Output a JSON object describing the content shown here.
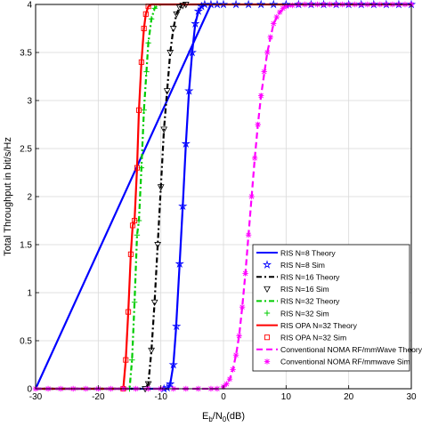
{
  "chart_data": {
    "type": "line",
    "xlabel": "E",
    "xlabel_sub": "b",
    "xlabel_mid": "/N",
    "xlabel_sub2": "0",
    "xlabel_unit": "(dB)",
    "ylabel": "Total Throughput in bit/s/Hz",
    "xlim": [
      -30,
      30
    ],
    "ylim": [
      0,
      4
    ],
    "xticks": [
      -30,
      -20,
      -10,
      0,
      10,
      20,
      30
    ],
    "yticks": [
      0,
      0.5,
      1,
      1.5,
      2,
      2.5,
      3,
      3.5,
      4
    ],
    "grid": true,
    "legend_position": "bottom-right",
    "series": [
      {
        "name": "RIS N=8 Theory",
        "color": "#0000ff",
        "dash": "solid",
        "marker": "none",
        "width": 2.2,
        "x": [
          -30,
          -9,
          -8.5,
          -8,
          -7.6,
          -7,
          -6.5,
          -6,
          -5.5,
          -5,
          -4.5,
          -4,
          -3.5,
          -3,
          -2.5,
          -2,
          -30
        ],
        "y": [
          0,
          0,
          0.05,
          0.25,
          0.6,
          1.3,
          1.9,
          2.55,
          3.1,
          3.5,
          3.8,
          3.93,
          3.98,
          4.0,
          4.0,
          4.0,
          0
        ]
      },
      {
        "name": "RIS N=8 Sim",
        "color": "#0000ff",
        "dash": "none",
        "marker": "star",
        "x": [
          -9.5,
          -9,
          -8.5,
          -8,
          -7.5,
          -7,
          -6.5,
          -6,
          -5.5,
          -5,
          -4.5,
          -4,
          -3.5,
          -3,
          -2,
          -1,
          0,
          2,
          4,
          6,
          8,
          10,
          12,
          14,
          16,
          18,
          20,
          22,
          24,
          26,
          28,
          30
        ],
        "y": [
          0,
          0.01,
          0.05,
          0.25,
          0.65,
          1.3,
          1.9,
          2.55,
          3.1,
          3.5,
          3.8,
          3.93,
          3.98,
          4.0,
          4.0,
          4.0,
          4.0,
          4.0,
          4.0,
          4.0,
          4.0,
          4.0,
          4.0,
          4.0,
          4.0,
          4.0,
          4.0,
          4.0,
          4.0,
          4.0,
          4.0,
          4.0
        ]
      },
      {
        "name": "RIS N=16 Theory",
        "color": "#000000",
        "dash": "6,3,2,3",
        "marker": "none",
        "width": 2.2,
        "x": [
          -30,
          -12.5,
          -12,
          -11.5,
          -11,
          -10.5,
          -10,
          -9.5,
          -9,
          -8.5,
          -8,
          -7.5,
          -7,
          -6
        ],
        "y": [
          0,
          0,
          0.05,
          0.4,
          0.9,
          1.5,
          2.1,
          2.7,
          3.1,
          3.5,
          3.75,
          3.9,
          3.97,
          4.0
        ]
      },
      {
        "name": "RIS N=16 Sim",
        "color": "#000000",
        "dash": "none",
        "marker": "triangle-down",
        "x": [
          -12.5,
          -12,
          -11.5,
          -11,
          -10.5,
          -10,
          -9.5,
          -9,
          -8.5,
          -8,
          -7.5,
          -7,
          -6.5,
          -6
        ],
        "y": [
          0,
          0.05,
          0.4,
          0.9,
          1.5,
          2.1,
          2.7,
          3.1,
          3.5,
          3.75,
          3.9,
          3.97,
          3.99,
          4.0
        ]
      },
      {
        "name": "RIS N=32 Theory",
        "color": "#00cc00",
        "dash": "6,3,2,3",
        "marker": "none",
        "width": 2.2,
        "x": [
          -30,
          -15,
          -14.6,
          -14.2,
          -13.8,
          -13.5,
          -13.1,
          -12.7,
          -12.3,
          -12,
          -11.5,
          -11,
          -10.5,
          -10
        ],
        "y": [
          0,
          0,
          0.3,
          0.9,
          1.6,
          1.75,
          2.3,
          2.9,
          3.3,
          3.6,
          3.85,
          3.96,
          3.99,
          4.0
        ]
      },
      {
        "name": "RIS N=32 Sim",
        "color": "#00cc00",
        "dash": "none",
        "marker": "plus",
        "x": [
          -15,
          -14.6,
          -14.2,
          -13.8,
          -13.5,
          -13.1,
          -12.7,
          -12.3,
          -12,
          -11.5,
          -11
        ],
        "y": [
          0,
          0.3,
          0.9,
          1.6,
          1.75,
          2.3,
          2.9,
          3.3,
          3.6,
          3.85,
          3.96
        ]
      },
      {
        "name": "RIS OPA N=32 Theory",
        "color": "#ff0000",
        "dash": "solid",
        "marker": "none",
        "width": 2.2,
        "x": [
          -30,
          -16,
          -15.6,
          -15.2,
          -14.8,
          -14.5,
          -14.2,
          -13.8,
          -13.5,
          -13.1,
          -12.7,
          -12.4,
          -12,
          -11.5,
          -11,
          30
        ],
        "y": [
          0,
          0,
          0.3,
          0.8,
          1.4,
          1.7,
          1.75,
          2.3,
          2.9,
          3.4,
          3.75,
          3.9,
          3.98,
          4.0,
          4.0,
          4.0
        ]
      },
      {
        "name": "RIS OPA N=32 Sim",
        "color": "#ff0000",
        "dash": "none",
        "marker": "square",
        "x": [
          -16,
          -15.6,
          -15.2,
          -14.8,
          -14.5,
          -14.2,
          -13.8,
          -13.5,
          -13.1,
          -12.7,
          -12.4,
          -12
        ],
        "y": [
          0,
          0.3,
          0.8,
          1.4,
          1.7,
          1.75,
          2.3,
          2.9,
          3.4,
          3.75,
          3.9,
          3.98
        ]
      },
      {
        "name": "Conventional NOMA RF/mmWave Theory",
        "color": "#ff00ff",
        "dash": "7,4",
        "marker": "none",
        "width": 2.2,
        "x": [
          -30,
          -1,
          0,
          0.5,
          1,
          1.5,
          2,
          2.5,
          3,
          3.5,
          4,
          4.5,
          5,
          5.5,
          6,
          7,
          8,
          9,
          10,
          12,
          15,
          20,
          25,
          30
        ],
        "y": [
          0,
          0,
          0.02,
          0.05,
          0.1,
          0.2,
          0.35,
          0.55,
          0.85,
          1.2,
          1.6,
          2.0,
          2.4,
          2.75,
          3.05,
          3.5,
          3.8,
          3.92,
          3.98,
          4.0,
          4.0,
          4.0,
          4.0,
          4.0
        ]
      },
      {
        "name": "Conventional NOMA RF/mmwave Sim",
        "color": "#ff00ff",
        "dash": "none",
        "marker": "asterisk",
        "x": [
          -30,
          -28,
          -26,
          -24,
          -22,
          -20,
          -18,
          -16,
          -14,
          -12,
          -10,
          -8,
          -6,
          -4,
          -2,
          -1,
          0,
          0.5,
          1,
          1.5,
          2,
          2.5,
          3,
          3.5,
          4,
          4.5,
          5,
          5.5,
          6,
          6.5,
          7,
          7.5,
          8,
          8.5,
          9,
          9.5,
          10,
          11,
          12,
          13,
          14,
          15,
          16,
          17,
          18,
          19,
          20,
          21,
          22,
          23,
          24,
          25,
          26,
          27,
          28,
          29,
          30
        ],
        "y": [
          0,
          0,
          0,
          0,
          0,
          0,
          0,
          0,
          0,
          0,
          0,
          0,
          0,
          0,
          0,
          0,
          0.02,
          0.05,
          0.1,
          0.2,
          0.35,
          0.55,
          0.85,
          1.2,
          1.6,
          2.0,
          2.4,
          2.75,
          3.05,
          3.3,
          3.5,
          3.66,
          3.8,
          3.87,
          3.92,
          3.96,
          3.98,
          3.99,
          4.0,
          4.0,
          4.0,
          4.0,
          4.0,
          4.0,
          4.0,
          4.0,
          4.0,
          4.0,
          4.0,
          4.0,
          4.0,
          4.0,
          4.0,
          4.0,
          4.0,
          4.0,
          4.0
        ]
      }
    ],
    "legend": [
      {
        "label": "RIS N=8 Theory",
        "color": "#0000ff",
        "dash": "solid",
        "marker": "none"
      },
      {
        "label": "RIS N=8 Sim",
        "color": "#0000ff",
        "dash": "none",
        "marker": "star"
      },
      {
        "label": "RIS N=16 Theory",
        "color": "#000000",
        "dash": "6,3,2,3",
        "marker": "none"
      },
      {
        "label": "RIS N=16 Sim",
        "color": "#000000",
        "dash": "none",
        "marker": "triangle-down"
      },
      {
        "label": "RIS N=32 Theory",
        "color": "#00cc00",
        "dash": "6,3,2,3",
        "marker": "none"
      },
      {
        "label": "RIS N=32 Sim",
        "color": "#00cc00",
        "dash": "none",
        "marker": "plus"
      },
      {
        "label": "RIS OPA N=32 Theory",
        "color": "#ff0000",
        "dash": "solid",
        "marker": "none"
      },
      {
        "label": "RIS OPA N=32 Sim",
        "color": "#ff0000",
        "dash": "none",
        "marker": "square"
      },
      {
        "label": "Conventional NOMA RF/mmWave Theory",
        "color": "#ff00ff",
        "dash": "7,4",
        "marker": "none"
      },
      {
        "label": "Conventional NOMA RF/mmwave Sim",
        "color": "#ff00ff",
        "dash": "none",
        "marker": "asterisk"
      }
    ]
  }
}
